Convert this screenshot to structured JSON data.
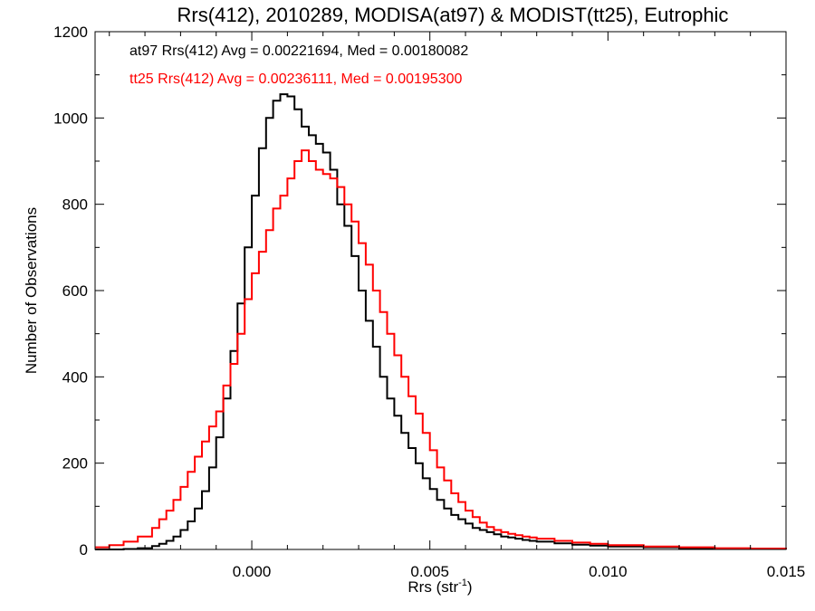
{
  "chart_data": {
    "type": "line",
    "title": "Rrs(412), 2010289, MODISA(at97) & MODIST(tt25), Eutrophic",
    "xlabel": "Rrs (str",
    "xlabel_sup": "-1",
    "xlabel_close": ")",
    "ylabel": "Number of Observations",
    "xlim": [
      -0.0044,
      0.015
    ],
    "ylim": [
      0,
      1200
    ],
    "x_ticks": [
      0.0,
      0.005,
      0.01,
      0.015
    ],
    "x_tick_labels": [
      "0.000",
      "0.005",
      "0.010",
      "0.015"
    ],
    "y_ticks": [
      0,
      200,
      400,
      600,
      800,
      1000,
      1200
    ],
    "y_tick_labels": [
      "0",
      "200",
      "400",
      "600",
      "800",
      "1000",
      "1200"
    ],
    "grid": false,
    "annotations": [
      {
        "text": "at97 Rrs(412) Avg = 0.00221694, Med = 0.00180082",
        "color": "#000000"
      },
      {
        "text": "tt25 Rrs(412) Avg = 0.00236111, Med = 0.00195300",
        "color": "#ff0000"
      }
    ],
    "series": [
      {
        "color": "#000000",
        "x": [
          -0.0044,
          -0.004,
          -0.0036,
          -0.0032,
          -0.0028,
          -0.0026,
          -0.0024,
          -0.0022,
          -0.002,
          -0.0018,
          -0.0016,
          -0.0014,
          -0.0012,
          -0.001,
          -0.0008,
          -0.0006,
          -0.0004,
          -0.0002,
          0.0,
          0.0002,
          0.0004,
          0.0006,
          0.0008,
          0.001,
          0.0012,
          0.0014,
          0.0016,
          0.0018,
          0.002,
          0.0022,
          0.0024,
          0.0026,
          0.0028,
          0.003,
          0.0032,
          0.0034,
          0.0036,
          0.0038,
          0.004,
          0.0042,
          0.0044,
          0.0046,
          0.0048,
          0.005,
          0.0052,
          0.0054,
          0.0056,
          0.0058,
          0.006,
          0.0062,
          0.0064,
          0.0066,
          0.0068,
          0.007,
          0.0072,
          0.0074,
          0.0076,
          0.0078,
          0.008,
          0.0085,
          0.009,
          0.0095,
          0.01,
          0.011,
          0.012,
          0.013,
          0.014,
          0.015
        ],
        "values": [
          0,
          0,
          1,
          3,
          8,
          13,
          20,
          30,
          45,
          65,
          95,
          135,
          190,
          260,
          350,
          460,
          570,
          700,
          820,
          930,
          1000,
          1040,
          1055,
          1050,
          1020,
          980,
          960,
          940,
          920,
          880,
          800,
          750,
          680,
          600,
          530,
          470,
          400,
          350,
          310,
          270,
          235,
          200,
          165,
          140,
          115,
          95,
          80,
          70,
          60,
          50,
          45,
          40,
          35,
          30,
          28,
          25,
          22,
          20,
          18,
          14,
          11,
          9,
          7,
          5,
          3,
          2,
          1,
          0
        ]
      },
      {
        "color": "#ff0000",
        "x": [
          -0.0044,
          -0.004,
          -0.0036,
          -0.0032,
          -0.0028,
          -0.0026,
          -0.0024,
          -0.0022,
          -0.002,
          -0.0018,
          -0.0016,
          -0.0014,
          -0.0012,
          -0.001,
          -0.0008,
          -0.0006,
          -0.0004,
          -0.0002,
          0.0,
          0.0002,
          0.0004,
          0.0006,
          0.0008,
          0.001,
          0.0012,
          0.0014,
          0.0016,
          0.0018,
          0.002,
          0.0022,
          0.0024,
          0.0026,
          0.0028,
          0.003,
          0.0032,
          0.0034,
          0.0036,
          0.0038,
          0.004,
          0.0042,
          0.0044,
          0.0046,
          0.0048,
          0.005,
          0.0052,
          0.0054,
          0.0056,
          0.0058,
          0.006,
          0.0062,
          0.0064,
          0.0066,
          0.0068,
          0.007,
          0.0072,
          0.0074,
          0.0076,
          0.0078,
          0.008,
          0.0085,
          0.009,
          0.0095,
          0.01,
          0.011,
          0.012,
          0.013,
          0.014,
          0.015
        ],
        "values": [
          5,
          10,
          18,
          30,
          50,
          70,
          90,
          115,
          145,
          180,
          215,
          250,
          285,
          320,
          380,
          430,
          500,
          580,
          640,
          690,
          740,
          790,
          820,
          860,
          900,
          925,
          900,
          880,
          870,
          860,
          840,
          800,
          760,
          710,
          660,
          600,
          550,
          500,
          450,
          400,
          355,
          315,
          270,
          230,
          190,
          160,
          130,
          110,
          90,
          75,
          62,
          52,
          45,
          40,
          36,
          33,
          30,
          28,
          25,
          20,
          16,
          13,
          10,
          7,
          5,
          3,
          2,
          1
        ]
      }
    ]
  }
}
